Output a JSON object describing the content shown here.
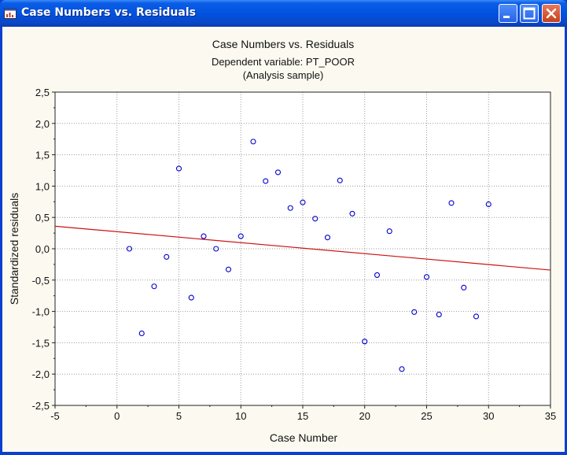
{
  "window": {
    "title": "Case Numbers vs. Residuals",
    "icon": "chart-window-icon",
    "buttons": {
      "minimize": "minimize-icon",
      "maximize": "maximize-icon",
      "close": "close-icon"
    },
    "colors": {
      "titlebar": "#0152df",
      "close_button": "#d4522c",
      "client_bg": "#fcfaf0"
    }
  },
  "chart_data": {
    "type": "scatter",
    "title": "Case Numbers vs. Residuals",
    "subtitle_lines": [
      "Dependent variable: PT_POOR",
      "(Analysis sample)"
    ],
    "xlabel": "Case Number",
    "ylabel": "Standardized residuals",
    "xlim": [
      -5,
      35
    ],
    "ylim": [
      -2.5,
      2.5
    ],
    "x_ticks": [
      "-5",
      "0",
      "5",
      "10",
      "15",
      "20",
      "25",
      "30",
      "35"
    ],
    "y_ticks": [
      "2,5",
      "2,0",
      "1,5",
      "1,0",
      "0,5",
      "0,0",
      "-0,5",
      "-1,0",
      "-1,5",
      "-2,0",
      "-2,5"
    ],
    "grid": true,
    "point_color": "#0000cc",
    "line_color": "#cc1111",
    "points": [
      {
        "x": 1,
        "y": 0.0
      },
      {
        "x": 2,
        "y": -1.35
      },
      {
        "x": 3,
        "y": -0.6
      },
      {
        "x": 4,
        "y": -0.13
      },
      {
        "x": 5,
        "y": 1.28
      },
      {
        "x": 6,
        "y": -0.78
      },
      {
        "x": 7,
        "y": 0.2
      },
      {
        "x": 8,
        "y": 0.0
      },
      {
        "x": 9,
        "y": -0.33
      },
      {
        "x": 10,
        "y": 0.2
      },
      {
        "x": 11,
        "y": 1.71
      },
      {
        "x": 12,
        "y": 1.08
      },
      {
        "x": 13,
        "y": 1.22
      },
      {
        "x": 14,
        "y": 0.65
      },
      {
        "x": 15,
        "y": 0.74
      },
      {
        "x": 16,
        "y": 0.48
      },
      {
        "x": 17,
        "y": 0.18
      },
      {
        "x": 18,
        "y": 1.09
      },
      {
        "x": 19,
        "y": 0.56
      },
      {
        "x": 20,
        "y": -1.48
      },
      {
        "x": 21,
        "y": -0.42
      },
      {
        "x": 22,
        "y": 0.28
      },
      {
        "x": 23,
        "y": -1.92
      },
      {
        "x": 24,
        "y": -1.01
      },
      {
        "x": 25,
        "y": -0.45
      },
      {
        "x": 26,
        "y": -1.05
      },
      {
        "x": 27,
        "y": 0.73
      },
      {
        "x": 28,
        "y": -0.62
      },
      {
        "x": 29,
        "y": -1.08
      },
      {
        "x": 30,
        "y": 0.71
      }
    ],
    "trend_line": [
      {
        "x": -5,
        "y": 0.36
      },
      {
        "x": 35,
        "y": -0.34
      }
    ]
  }
}
